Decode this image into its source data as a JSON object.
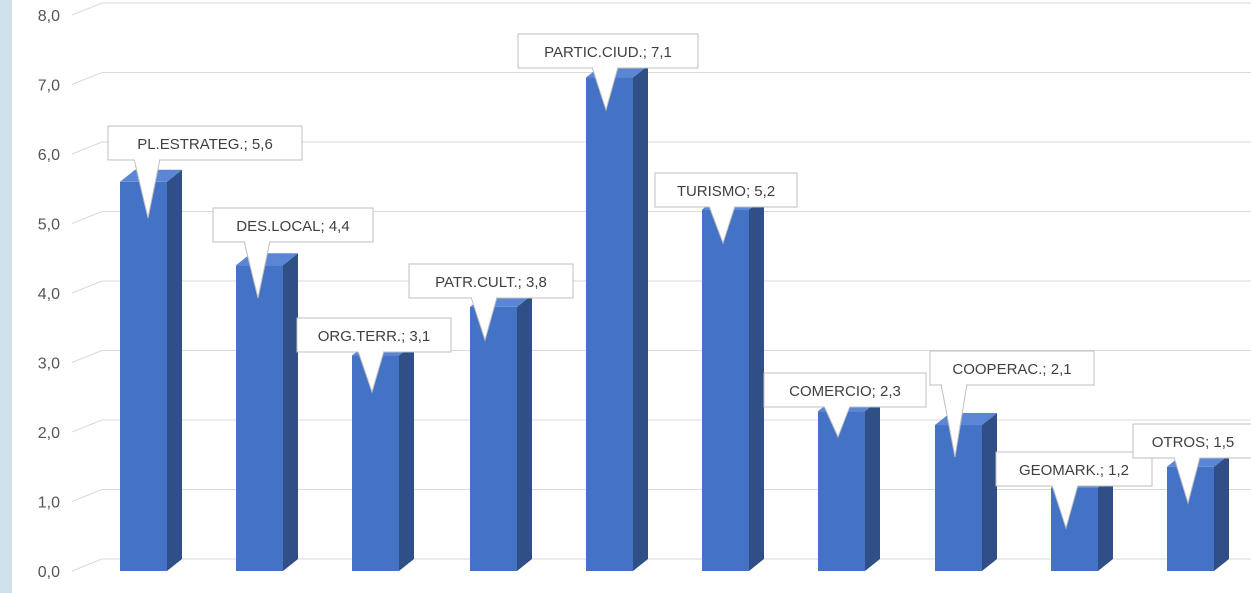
{
  "chart_data": {
    "type": "bar",
    "title": "",
    "xlabel": "",
    "ylabel": "",
    "ylim": [
      0,
      8
    ],
    "yticks": [
      "0,0",
      "1,0",
      "2,0",
      "3,0",
      "4,0",
      "5,0",
      "6,0",
      "7,0",
      "8,0"
    ],
    "grid": true,
    "legend": "none",
    "bar_color": "#4472c4",
    "bar_side_color": "#2f4f86",
    "bar_top_color": "#5b86d6",
    "categories": [
      "PL.ESTRATEG.",
      "DES.LOCAL",
      "ORG.TERR.",
      "PATR.CULT.",
      "PARTIC.CIUD.",
      "TURISMO",
      "COMERCIO",
      "COOPERAC.",
      "GEOMARK.",
      "OTROS"
    ],
    "values": [
      5.6,
      4.4,
      3.1,
      3.8,
      7.1,
      5.2,
      2.3,
      2.1,
      1.2,
      1.5
    ],
    "data_labels": [
      "PL.ESTRATEG.; 5,6",
      "DES.LOCAL; 4,4",
      "ORG.TERR.; 3,1",
      "PATR.CULT.; 3,8",
      "PARTIC.CIUD.; 7,1",
      "TURISMO; 5,2",
      "COMERCIO; 2,3",
      "COOPERAC.; 2,1",
      "GEOMARK.; 1,2",
      "OTROS; 1,5"
    ]
  }
}
